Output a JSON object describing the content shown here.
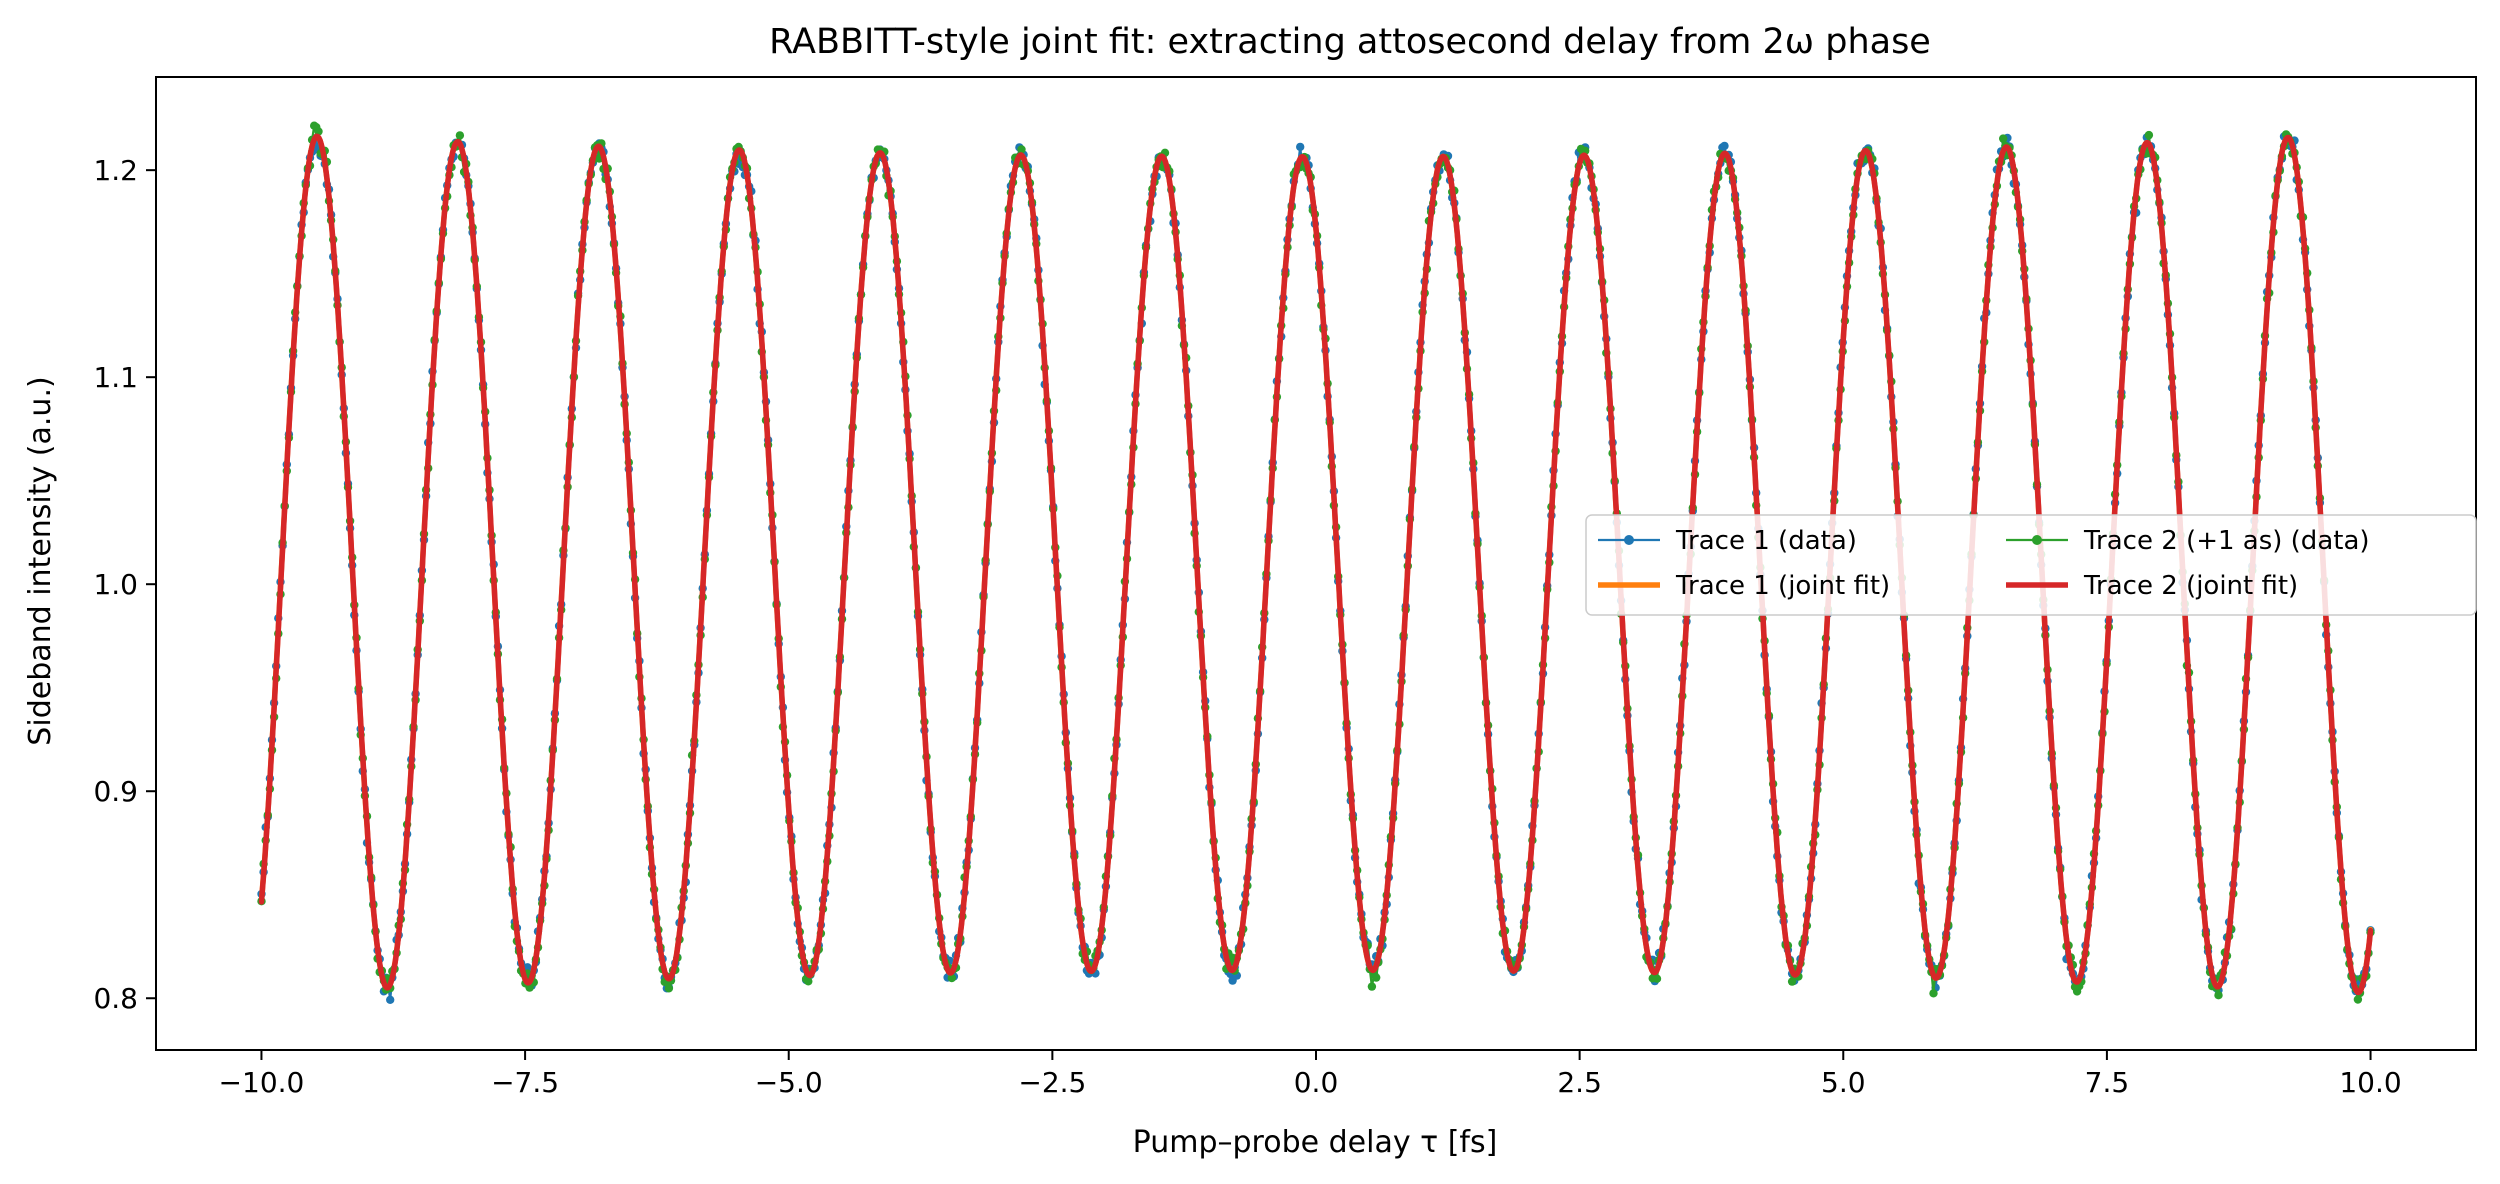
{
  "chart_data": {
    "type": "line",
    "title": "RABBITT-style joint fit: extracting attosecond delay from 2ω phase",
    "xlabel": "Pump–probe delay τ [fs]",
    "ylabel": "Sideband intensity (a.u.)",
    "xlim": [
      -11.0,
      11.0
    ],
    "ylim": [
      0.775,
      1.245
    ],
    "xticks": [
      -10.0,
      -7.5,
      -5.0,
      -2.5,
      0.0,
      2.5,
      5.0,
      7.5,
      10.0
    ],
    "xtick_labels": [
      "−10.0",
      "−7.5",
      "−5.0",
      "−2.5",
      "0.0",
      "2.5",
      "5.0",
      "7.5",
      "10.0"
    ],
    "yticks": [
      0.8,
      0.9,
      1.0,
      1.1,
      1.2
    ],
    "ytick_labels": [
      "0.8",
      "0.9",
      "1.0",
      "1.1",
      "1.2"
    ],
    "grid": false,
    "legend_position": "center-right",
    "legend_columns": 2,
    "x_range": [
      -10.0,
      10.0
    ],
    "model": {
      "form": "offset + (amp0 + amp_quad*x^2) * sin(2*pi*x/period + phase)",
      "offset": 1.01,
      "amp0": 0.1965,
      "amp_quad": 0.00011,
      "period": 1.335,
      "phase": 2.18
    },
    "series": [
      {
        "name": "Trace 1 (data)",
        "kind": "data",
        "color": "#1f77b4",
        "delay_as": 0,
        "noise": 0.003
      },
      {
        "name": "Trace 1 (joint fit)",
        "kind": "fit",
        "color": "#ff7f0e",
        "delay_as": 0
      },
      {
        "name": "Trace 2 (+1 as) (data)",
        "kind": "data",
        "color": "#2ca02c",
        "delay_as": 1,
        "noise": 0.003
      },
      {
        "name": "Trace 2 (joint fit)",
        "kind": "fit",
        "color": "#d62728",
        "delay_as": 1
      }
    ],
    "legend_order": [
      0,
      1,
      2,
      3
    ]
  }
}
